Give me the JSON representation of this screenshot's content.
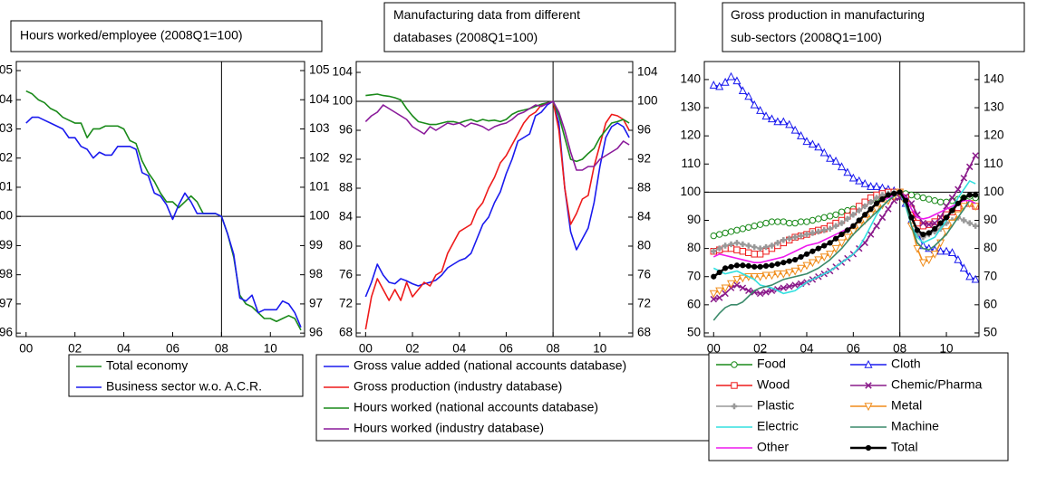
{
  "chart_data": [
    {
      "type": "line",
      "title_lines": [
        "Hours worked/employee (2008Q1=100)"
      ],
      "x": [
        2000,
        2000.25,
        2000.5,
        2000.75,
        2001,
        2001.25,
        2001.5,
        2001.75,
        2002,
        2002.25,
        2002.5,
        2002.75,
        2003,
        2003.25,
        2003.5,
        2003.75,
        2004,
        2004.25,
        2004.5,
        2004.75,
        2005,
        2005.25,
        2005.5,
        2005.75,
        2006,
        2006.25,
        2006.5,
        2006.75,
        2007,
        2007.25,
        2007.5,
        2007.75,
        2008,
        2008.25,
        2008.5,
        2008.75,
        2009,
        2009.25,
        2009.5,
        2009.75,
        2010,
        2010.25,
        2010.5,
        2010.75,
        2011,
        2011.25
      ],
      "xlim": [
        1999.6,
        2011.4
      ],
      "xticks": [
        {
          "value": 2000,
          "label": "00"
        },
        {
          "value": 2002,
          "label": "02"
        },
        {
          "value": 2004,
          "label": "04"
        },
        {
          "value": 2006,
          "label": "06"
        },
        {
          "value": 2008,
          "label": "08"
        },
        {
          "value": 2010,
          "label": "10"
        }
      ],
      "ylim": [
        95.88,
        105.31
      ],
      "yticks": [
        96,
        97,
        98,
        99,
        100,
        101,
        102,
        103,
        104,
        105
      ],
      "vline": 2008,
      "hline": 100,
      "series": [
        {
          "name": "Total economy",
          "color": "#1a8a1a",
          "values": [
            104.3,
            104.2,
            104.0,
            103.9,
            103.7,
            103.6,
            103.4,
            103.3,
            103.2,
            103.2,
            102.7,
            103.0,
            103.0,
            103.1,
            103.1,
            103.1,
            103.0,
            102.6,
            102.5,
            101.9,
            101.5,
            101.2,
            100.8,
            100.5,
            100.5,
            100.3,
            100.5,
            100.7,
            100.5,
            100.1,
            100.1,
            100.1,
            100.0,
            99.4,
            98.6,
            97.3,
            97.0,
            96.9,
            96.7,
            96.5,
            96.5,
            96.4,
            96.5,
            96.6,
            96.5,
            96.1
          ]
        },
        {
          "name": "Business sector w.o. A.C.R.",
          "color": "#1a1aee",
          "values": [
            103.2,
            103.4,
            103.4,
            103.3,
            103.2,
            103.1,
            103.0,
            102.7,
            102.7,
            102.4,
            102.3,
            102.0,
            102.2,
            102.1,
            102.1,
            102.4,
            102.4,
            102.4,
            102.3,
            101.5,
            101.4,
            100.8,
            100.7,
            100.4,
            99.9,
            100.4,
            100.8,
            100.5,
            100.1,
            100.1,
            100.1,
            100.1,
            100.0,
            99.4,
            98.7,
            97.2,
            97.1,
            97.3,
            96.7,
            96.8,
            96.8,
            96.8,
            97.1,
            97.0,
            96.7,
            96.2
          ]
        }
      ]
    },
    {
      "type": "line",
      "title_lines": [
        "Manufacturing data from different",
        "databases (2008Q1=100)"
      ],
      "x": [
        2000,
        2000.25,
        2000.5,
        2000.75,
        2001,
        2001.25,
        2001.5,
        2001.75,
        2002,
        2002.25,
        2002.5,
        2002.75,
        2003,
        2003.25,
        2003.5,
        2003.75,
        2004,
        2004.25,
        2004.5,
        2004.75,
        2005,
        2005.25,
        2005.5,
        2005.75,
        2006,
        2006.25,
        2006.5,
        2006.75,
        2007,
        2007.25,
        2007.5,
        2007.75,
        2008,
        2008.25,
        2008.5,
        2008.75,
        2009,
        2009.25,
        2009.5,
        2009.75,
        2010,
        2010.25,
        2010.5,
        2010.75,
        2011,
        2011.25
      ],
      "xlim": [
        1999.6,
        2011.4
      ],
      "xticks": [
        {
          "value": 2000,
          "label": "00"
        },
        {
          "value": 2002,
          "label": "02"
        },
        {
          "value": 2004,
          "label": "04"
        },
        {
          "value": 2006,
          "label": "06"
        },
        {
          "value": 2008,
          "label": "08"
        },
        {
          "value": 2010,
          "label": "10"
        }
      ],
      "ylim": [
        67.5,
        105.5
      ],
      "yticks": [
        68,
        72,
        76,
        80,
        84,
        88,
        92,
        96,
        100,
        104
      ],
      "vline": 2008,
      "hline": 100,
      "series": [
        {
          "name": "Gross value added (national accounts database)",
          "color": "#1a1aee",
          "values": [
            73,
            75,
            77.5,
            76,
            75,
            74.8,
            75.5,
            75.2,
            74.8,
            74.5,
            74.8,
            75,
            75.3,
            76,
            77,
            77.5,
            78,
            78.3,
            79,
            81,
            83,
            84,
            86,
            87.5,
            90,
            92,
            94.5,
            95,
            95.5,
            98,
            98.5,
            99.5,
            100,
            97,
            88,
            82,
            79.5,
            81,
            82.5,
            86,
            91,
            95,
            96.5,
            97,
            96.5,
            95
          ]
        },
        {
          "name": "Gross production (industry database)",
          "color": "#ee1a1a",
          "values": [
            68.5,
            73,
            75.5,
            74,
            72.5,
            74,
            72.5,
            75,
            73,
            74,
            75,
            74.5,
            76,
            76.5,
            79,
            80.5,
            82,
            82.5,
            83,
            85,
            86,
            88,
            89.5,
            91.5,
            92.5,
            94,
            95.5,
            97,
            98,
            98.5,
            99.5,
            99.8,
            100,
            96,
            88,
            83,
            84.5,
            86.5,
            87,
            91,
            94,
            97,
            98.2,
            98,
            97.5,
            96
          ]
        },
        {
          "name": "Hours worked (national accounts database)",
          "color": "#1a8a1a",
          "values": [
            100.8,
            100.9,
            101,
            100.8,
            100.7,
            100.5,
            100.2,
            99,
            98,
            97.2,
            97,
            96.8,
            96.8,
            97,
            97.2,
            97.2,
            97,
            97.3,
            97.5,
            97.2,
            97.5,
            97.3,
            97.4,
            97.2,
            97.5,
            98.2,
            98.6,
            98.8,
            99,
            99.3,
            99.6,
            99.8,
            100,
            98,
            95,
            92,
            91.7,
            92,
            92.8,
            93.5,
            95,
            96,
            97,
            97.2,
            97.5,
            97
          ]
        },
        {
          "name": "Hours worked (industry database)",
          "color": "#8a1a9a",
          "values": [
            97.2,
            98,
            98.5,
            99.5,
            99,
            98.5,
            98,
            97.5,
            96.5,
            96,
            95.5,
            96.5,
            96,
            96.5,
            97,
            96.8,
            97,
            96.5,
            97,
            96.8,
            96.5,
            96,
            96.5,
            96.8,
            97,
            97.5,
            98.2,
            98.5,
            99,
            99.5,
            99.3,
            99.7,
            100,
            98.5,
            96,
            93,
            90.5,
            90.5,
            91,
            91,
            92,
            92.5,
            93,
            93.5,
            94.5,
            94
          ]
        }
      ]
    },
    {
      "type": "line",
      "title_lines": [
        "Gross production in manufacturing",
        "sub-sectors (2008Q1=100)"
      ],
      "x": [
        2000,
        2000.25,
        2000.5,
        2000.75,
        2001,
        2001.25,
        2001.5,
        2001.75,
        2002,
        2002.25,
        2002.5,
        2002.75,
        2003,
        2003.25,
        2003.5,
        2003.75,
        2004,
        2004.25,
        2004.5,
        2004.75,
        2005,
        2005.25,
        2005.5,
        2005.75,
        2006,
        2006.25,
        2006.5,
        2006.75,
        2007,
        2007.25,
        2007.5,
        2007.75,
        2008,
        2008.25,
        2008.5,
        2008.75,
        2009,
        2009.25,
        2009.5,
        2009.75,
        2010,
        2010.25,
        2010.5,
        2010.75,
        2011,
        2011.25
      ],
      "xlim": [
        1999.6,
        2011.4
      ],
      "xticks": [
        {
          "value": 2000,
          "label": "00"
        },
        {
          "value": 2002,
          "label": "02"
        },
        {
          "value": 2004,
          "label": "04"
        },
        {
          "value": 2006,
          "label": "06"
        },
        {
          "value": 2008,
          "label": "08"
        },
        {
          "value": 2010,
          "label": "10"
        }
      ],
      "ylim": [
        48.7,
        146.4
      ],
      "yticks": [
        50,
        60,
        70,
        80,
        90,
        100,
        110,
        120,
        130,
        140
      ],
      "vline": 2008,
      "hline": 100,
      "series": [
        {
          "name": "Food",
          "color": "#1a8a1a",
          "marker": "circle",
          "values": [
            84.5,
            85,
            85.5,
            86,
            86.5,
            87,
            87.5,
            88,
            88.5,
            89,
            89.5,
            89.5,
            89.5,
            89,
            89,
            89.5,
            89.5,
            90,
            90.5,
            91,
            91.5,
            92,
            93,
            93.5,
            94,
            95,
            96,
            97,
            98,
            99,
            99.5,
            99.8,
            100,
            99.5,
            99,
            98.5,
            98,
            97.5,
            97,
            96.5,
            96.5,
            97,
            97.5,
            98,
            98.5,
            98
          ]
        },
        {
          "name": "Cloth",
          "color": "#1a1aee",
          "marker": "triangle",
          "values": [
            138,
            137.5,
            139,
            141,
            139.5,
            136,
            134,
            131,
            129,
            127,
            126,
            125,
            125,
            124,
            122,
            120,
            118,
            117,
            116,
            114,
            112,
            111,
            109,
            107,
            105,
            104,
            103,
            102,
            102,
            101.5,
            101,
            100.5,
            100,
            96,
            90,
            86,
            81,
            80,
            79.5,
            79,
            79,
            78.5,
            76,
            73,
            70,
            69
          ]
        },
        {
          "name": "Wood",
          "color": "#ee1a1a",
          "marker": "square",
          "values": [
            79,
            79.5,
            80,
            80,
            79.5,
            79,
            78.5,
            78,
            78,
            79,
            80,
            81,
            82,
            83,
            84,
            84.5,
            85,
            86,
            86.5,
            87,
            88,
            89,
            90,
            91.5,
            93,
            95,
            96.5,
            98,
            99,
            99.5,
            100,
            100,
            100,
            98,
            94,
            89,
            88,
            88.5,
            89.5,
            90.5,
            92,
            93,
            94.5,
            96,
            96,
            95
          ]
        },
        {
          "name": "Chemic/Pharma",
          "color": "#8a1a8a",
          "marker": "x",
          "values": [
            62,
            62.5,
            64,
            66,
            67,
            66,
            65,
            64.5,
            64,
            64.5,
            65,
            65.5,
            66,
            66.5,
            67,
            67.5,
            68,
            69,
            70,
            71,
            72,
            73.5,
            75,
            76.5,
            78,
            80,
            82,
            85,
            88,
            91,
            94,
            97,
            98,
            98.5,
            96,
            92,
            89,
            88.5,
            89,
            91,
            95,
            98,
            101,
            105,
            109,
            113
          ]
        },
        {
          "name": "Plastic",
          "color": "#999999",
          "marker": "plus",
          "values": [
            79,
            80,
            81,
            81.5,
            82,
            81.5,
            81,
            80.5,
            80,
            80.5,
            81,
            82,
            83,
            83.5,
            84,
            84.5,
            85,
            85.5,
            86,
            86.5,
            87,
            88,
            89,
            90.5,
            92,
            93.5,
            95,
            96.5,
            98,
            99,
            99.5,
            100,
            100,
            97,
            91,
            85,
            84,
            85,
            86,
            87,
            89,
            90,
            91,
            90,
            89,
            88
          ]
        },
        {
          "name": "Metal",
          "color": "#f08c1a",
          "marker": "downtriangle",
          "values": [
            64,
            65,
            66,
            67.5,
            69,
            69.5,
            70,
            70,
            70,
            70.5,
            70.5,
            71,
            71,
            71.5,
            72,
            73,
            74,
            75,
            76,
            77,
            78,
            80,
            82,
            84,
            86,
            88,
            90,
            92,
            94,
            95.5,
            97,
            98.5,
            100,
            96,
            88,
            80,
            75,
            76,
            78,
            82,
            86,
            89,
            92,
            95,
            96,
            95
          ]
        },
        {
          "name": "Electric",
          "color": "#33e0e0",
          "values": [
            73,
            72,
            71,
            71.5,
            72,
            71,
            70,
            69,
            67,
            66.5,
            66,
            65,
            64,
            64.5,
            65,
            66.5,
            68,
            69,
            70,
            71,
            72,
            73.5,
            75,
            76.5,
            78,
            80.5,
            84,
            88,
            92,
            95,
            97,
            99,
            100,
            95,
            88,
            84,
            82,
            83,
            84,
            87,
            90,
            94,
            98,
            101,
            104,
            103
          ]
        },
        {
          "name": "Machine",
          "color": "#3a8a6a",
          "values": [
            54.5,
            57,
            59,
            60,
            60,
            61,
            63,
            65,
            66,
            66.5,
            67,
            68,
            69,
            69.5,
            70,
            70.5,
            71,
            72,
            73,
            74.5,
            76,
            78,
            80,
            82.5,
            85,
            87,
            89,
            91,
            93,
            95,
            97,
            98.5,
            100,
            96,
            88,
            82,
            80,
            79.5,
            81,
            83,
            85,
            88,
            91,
            94,
            97,
            96
          ]
        },
        {
          "name": "Other",
          "color": "#ee1aee",
          "values": [
            77,
            78,
            77.5,
            77,
            76.5,
            76,
            75.5,
            75,
            75,
            75.5,
            76,
            76.5,
            77,
            78,
            79,
            80,
            81,
            81.5,
            82,
            83,
            84,
            85,
            86,
            87,
            88,
            90,
            92,
            94,
            96,
            97,
            98,
            99,
            100,
            98,
            94,
            91,
            90.5,
            91,
            92,
            93,
            94,
            95,
            96,
            97,
            97,
            96
          ]
        },
        {
          "name": "Total",
          "color": "#000000",
          "marker": "dot",
          "width": 2.5,
          "values": [
            70,
            71.5,
            73,
            73.5,
            74,
            74,
            73.8,
            73.5,
            73.5,
            73.8,
            74,
            74.5,
            75,
            75.5,
            76,
            77,
            78,
            79,
            80,
            81,
            82,
            83.5,
            85,
            86.5,
            88,
            90,
            92,
            94,
            96,
            97.5,
            99,
            99.5,
            100,
            97,
            91,
            86.5,
            85,
            85.5,
            87,
            89,
            91,
            93.5,
            96,
            98,
            99,
            99
          ]
        }
      ]
    }
  ]
}
